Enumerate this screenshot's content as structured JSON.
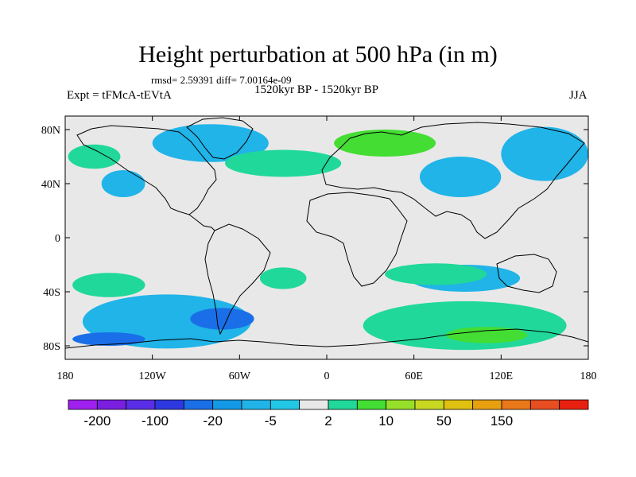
{
  "title": "Height perturbation at 500 hPa (in m)",
  "stats": "rmsd= 2.59391 diff= 7.00164e-09",
  "experiment": "Expt = tFMcA-tEVtA",
  "period": "1520kyr BP - 1520kyr BP",
  "season": "JJA",
  "chart_data": {
    "type": "heatmap",
    "xlabel": "",
    "ylabel": "",
    "xlim": [
      -180,
      180
    ],
    "ylim": [
      -90,
      90
    ],
    "lon_ticks": [
      {
        "value": -180,
        "label": "180"
      },
      {
        "value": -120,
        "label": "120W"
      },
      {
        "value": -60,
        "label": "60W"
      },
      {
        "value": 0,
        "label": "0"
      },
      {
        "value": 60,
        "label": "60E"
      },
      {
        "value": 120,
        "label": "120E"
      },
      {
        "value": 180,
        "label": "180"
      }
    ],
    "lat_ticks": [
      {
        "value": 80,
        "label": "80N"
      },
      {
        "value": 40,
        "label": "40N"
      },
      {
        "value": 0,
        "label": "0"
      },
      {
        "value": -40,
        "label": "40S"
      },
      {
        "value": -80,
        "label": "80S"
      }
    ],
    "colorbar": {
      "labels": [
        "-200",
        "-100",
        "-20",
        "-5",
        "2",
        "10",
        "50",
        "150"
      ],
      "colors": [
        "#a020f0",
        "#7a1ee0",
        "#5a2ee6",
        "#2d38e0",
        "#1a6fe8",
        "#1499e6",
        "#20b4e8",
        "#22c7e6",
        "#e8e8e8",
        "#20d89a",
        "#44dd33",
        "#96e02a",
        "#c8d822",
        "#e0c010",
        "#e8a010",
        "#e87818",
        "#e84e20",
        "#e82010"
      ]
    },
    "background_color": "#e8e8e8",
    "anomaly_regions": [
      {
        "name": "south-pacific-negative",
        "sign": "negative",
        "level": "-5",
        "lon": -110,
        "lat": -62,
        "rx": 58,
        "ry": 20
      },
      {
        "name": "south-america-core",
        "sign": "negative",
        "level": "-20",
        "lon": -72,
        "lat": -60,
        "rx": 22,
        "ry": 8
      },
      {
        "name": "south-pacific-core",
        "sign": "negative",
        "level": "-20",
        "lon": -150,
        "lat": -75,
        "rx": 25,
        "ry": 5
      },
      {
        "name": "subtropical-south-atlantic",
        "sign": "positive",
        "level": "2",
        "lon": -30,
        "lat": -30,
        "rx": 16,
        "ry": 8
      },
      {
        "name": "southeast-pacific-positive",
        "sign": "positive",
        "level": "2",
        "lon": -150,
        "lat": -35,
        "rx": 25,
        "ry": 9
      },
      {
        "name": "indian-ocean-positive",
        "sign": "positive",
        "level": "2",
        "lon": 75,
        "lat": -27,
        "rx": 35,
        "ry": 8
      },
      {
        "name": "southern-ocean-positive",
        "sign": "positive",
        "level": "2",
        "lon": 95,
        "lat": -65,
        "rx": 70,
        "ry": 18
      },
      {
        "name": "southern-ocean-core",
        "sign": "positive",
        "level": "10",
        "lon": 110,
        "lat": -72,
        "rx": 28,
        "ry": 6
      },
      {
        "name": "australia-negative",
        "sign": "negative",
        "level": "-5",
        "lon": 95,
        "lat": -30,
        "rx": 38,
        "ry": 10
      },
      {
        "name": "greenland-negative",
        "sign": "negative",
        "level": "-5",
        "lon": -80,
        "lat": 70,
        "rx": 40,
        "ry": 14
      },
      {
        "name": "north-atlantic-positive",
        "sign": "positive",
        "level": "2",
        "lon": -30,
        "lat": 55,
        "rx": 40,
        "ry": 10
      },
      {
        "name": "scandinavia-positive",
        "sign": "positive",
        "level": "10",
        "lon": 40,
        "lat": 70,
        "rx": 35,
        "ry": 10
      },
      {
        "name": "central-asia-negative",
        "sign": "negative",
        "level": "-5",
        "lon": 92,
        "lat": 45,
        "rx": 28,
        "ry": 15
      },
      {
        "name": "siberia-negative",
        "sign": "negative",
        "level": "-5",
        "lon": 150,
        "lat": 62,
        "rx": 30,
        "ry": 20
      },
      {
        "name": "north-pacific-positive",
        "sign": "positive",
        "level": "2",
        "lon": -160,
        "lat": 60,
        "rx": 18,
        "ry": 9
      },
      {
        "name": "east-pacific-negative",
        "sign": "negative",
        "level": "-5",
        "lon": -140,
        "lat": 40,
        "rx": 15,
        "ry": 10
      }
    ]
  }
}
